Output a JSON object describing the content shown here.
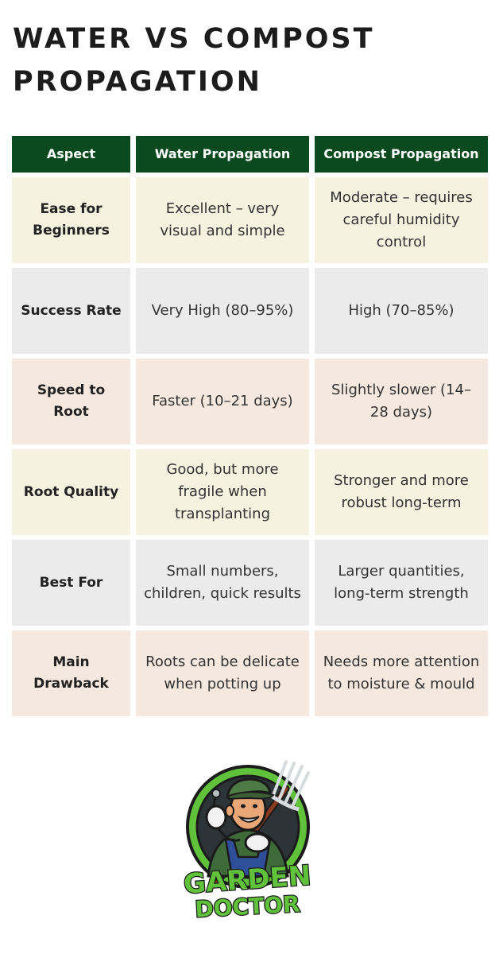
{
  "title": "WATER VS COMPOST PROPAGATION",
  "table": {
    "headers": [
      "Aspect",
      "Water Propagation",
      "Compost Propagation"
    ],
    "rows": [
      {
        "aspect": "Ease for Beginners",
        "water": "Excellent – very visual and simple",
        "compost": "Moderate – requires careful humidity control"
      },
      {
        "aspect": "Success Rate",
        "water": "Very High (80–95%)",
        "compost": "High (70–85%)"
      },
      {
        "aspect": "Speed to Root",
        "water": "Faster (10–21 days)",
        "compost": "Slightly slower (14–28 days)"
      },
      {
        "aspect": "Root Quality",
        "water": "Good, but more fragile when transplanting",
        "compost": "Stronger and more robust long-term"
      },
      {
        "aspect": "Best For",
        "water": "Small numbers, children, quick results",
        "compost": "Larger quantities, long-term strength"
      },
      {
        "aspect": "Main Drawback",
        "water": "Roots can be delicate when potting up",
        "compost": "Needs more attention to moisture & mould"
      }
    ]
  },
  "logo": {
    "line1": "GARDEN",
    "line2": "DOCTOR",
    "icon": "gardener-mascot-icon"
  },
  "colors": {
    "header_bg": "#0a4a1e",
    "row_cream": "#f5f2df",
    "row_grey": "#ebebeb",
    "row_peach": "#f5e8df",
    "logo_green": "#5fc23a"
  }
}
